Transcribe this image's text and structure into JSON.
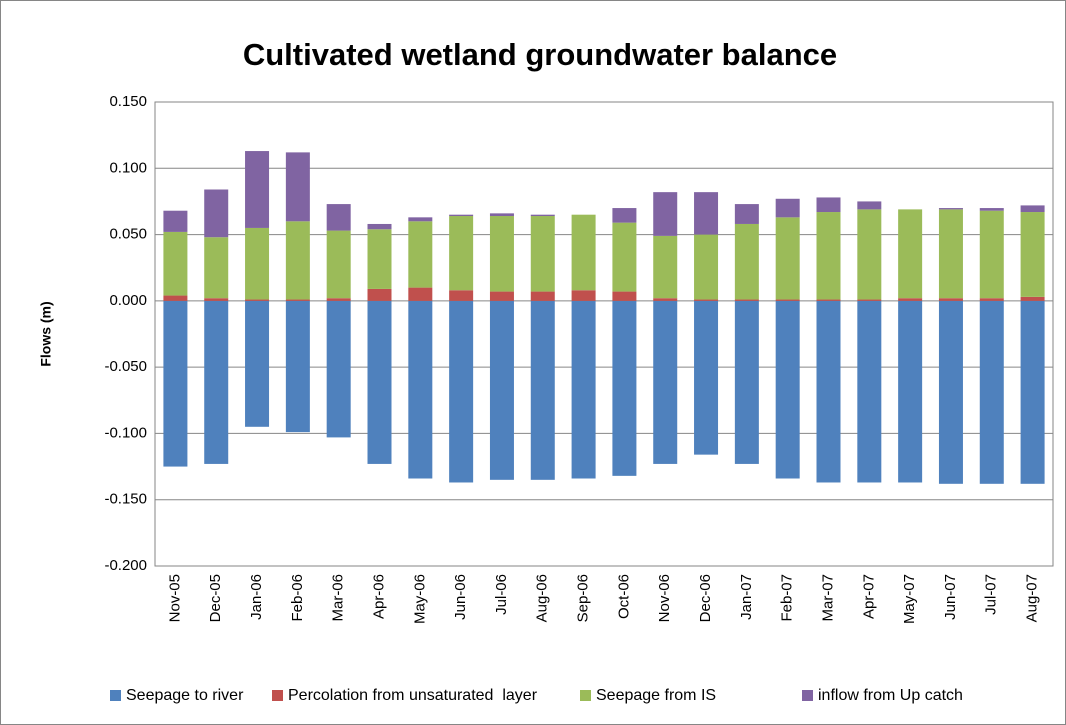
{
  "chart_data": {
    "type": "bar",
    "stacked": true,
    "title": "Cultivated wetland groundwater balance",
    "y_label": "Flows (m)",
    "categories": [
      "Nov-05",
      "Dec-05",
      "Jan-06",
      "Feb-06",
      "Mar-06",
      "Apr-06",
      "May-06",
      "Jun-06",
      "Jul-06",
      "Aug-06",
      "Sep-06",
      "Oct-06",
      "Nov-06",
      "Dec-06",
      "Jan-07",
      "Feb-07",
      "Mar-07",
      "Apr-07",
      "May-07",
      "Jun-07",
      "Jul-07",
      "Aug-07"
    ],
    "series": [
      {
        "name": "Seepage to river",
        "color": "#4f81bd",
        "values": [
          -0.125,
          -0.123,
          -0.095,
          -0.099,
          -0.103,
          -0.123,
          -0.134,
          -0.137,
          -0.135,
          -0.135,
          -0.134,
          -0.132,
          -0.123,
          -0.116,
          -0.123,
          -0.134,
          -0.137,
          -0.137,
          -0.137,
          -0.138,
          -0.138,
          -0.138
        ]
      },
      {
        "name": "Percolation from unsaturated  layer",
        "color": "#c0504d",
        "values": [
          0.004,
          0.002,
          0.001,
          0.001,
          0.002,
          0.009,
          0.01,
          0.008,
          0.007,
          0.007,
          0.008,
          0.007,
          0.002,
          0.001,
          0.001,
          0.001,
          0.001,
          0.001,
          0.002,
          0.002,
          0.002,
          0.003
        ]
      },
      {
        "name": "Seepage from IS",
        "color": "#9bbb59",
        "values": [
          0.048,
          0.046,
          0.054,
          0.059,
          0.051,
          0.045,
          0.05,
          0.056,
          0.057,
          0.057,
          0.057,
          0.052,
          0.047,
          0.049,
          0.057,
          0.062,
          0.066,
          0.068,
          0.067,
          0.067,
          0.066,
          0.064
        ]
      },
      {
        "name": "inflow from Up catch",
        "color": "#8064a2",
        "values": [
          0.016,
          0.036,
          0.058,
          0.052,
          0.02,
          0.004,
          0.003,
          0.001,
          0.002,
          0.001,
          0,
          0.011,
          0.033,
          0.032,
          0.015,
          0.014,
          0.011,
          0.006,
          0,
          0.001,
          0.002,
          0.005
        ]
      }
    ],
    "ylim": [
      -0.2,
      0.15
    ],
    "yticks": [
      {
        "value": -0.2,
        "label": "-0.200"
      },
      {
        "value": -0.15,
        "label": "-0.150"
      },
      {
        "value": -0.1,
        "label": "-0.100"
      },
      {
        "value": -0.05,
        "label": "-0.050"
      },
      {
        "value": 0,
        "label": "0.000"
      },
      {
        "value": 0.05,
        "label": "0.050"
      },
      {
        "value": 0.1,
        "label": "0.100"
      },
      {
        "value": 0.15,
        "label": "0.150"
      }
    ],
    "grid": true,
    "legend": "bottom"
  }
}
